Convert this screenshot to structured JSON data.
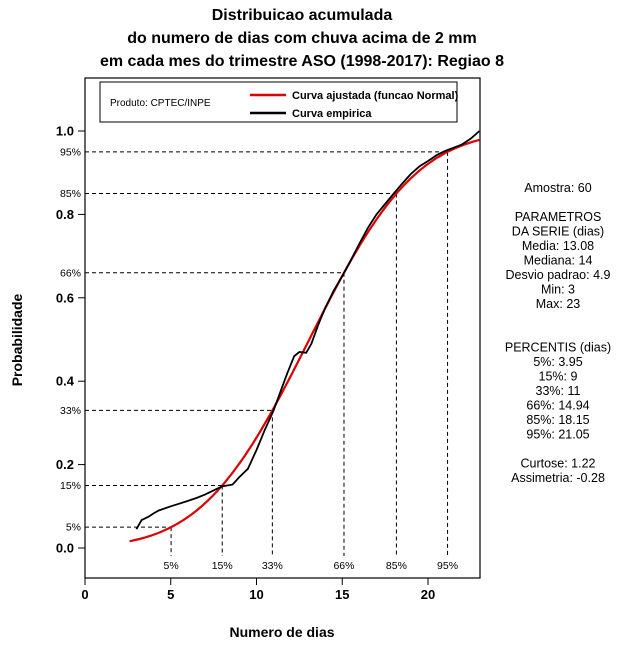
{
  "title": {
    "line1": "Distribuicao acumulada",
    "line2": "do numero de dias com chuva acima de 2 mm",
    "line3": "em cada mes do trimestre ASO (1998-2017): Regiao 8"
  },
  "legend": {
    "product": "Produto: CPTEC/INPE",
    "fitted_label": "Curva ajustada (funcao Normal)",
    "empirical_label": "Curva empirica"
  },
  "axes": {
    "xlabel": "Numero de dias",
    "ylabel": "Probabilidade"
  },
  "stats_panel": {
    "lines": [
      "Amostra: 60",
      "",
      "PARAMETROS",
      "DA SERIE (dias)",
      "Media: 13.08",
      "Mediana: 14",
      "Desvio padrao: 4.9",
      "Min: 3",
      "Max: 23",
      "",
      "",
      "PERCENTIS (dias)",
      "5%: 3.95",
      "15%: 9",
      "33%: 11",
      "66%: 14.94",
      "85%: 18.15",
      "95%: 21.05",
      "",
      "Curtose: 1.22",
      "Assimetria: -0.28"
    ]
  },
  "chart_data": {
    "type": "line",
    "title": "Distribuicao acumulada do numero de dias com chuva acima de 2 mm em cada mes do trimestre ASO (1998-2017): Regiao 8",
    "xlabel": "Numero de dias",
    "ylabel": "Probabilidade",
    "xlim": [
      0,
      23.1
    ],
    "ylim": [
      0,
      1
    ],
    "x_ticks": [
      0,
      5,
      10,
      15,
      20
    ],
    "y_ticks": [
      0,
      0.2,
      0.4,
      0.6,
      0.8,
      1
    ],
    "grid": false,
    "legend_position": "top",
    "colors": {
      "fitted": "#dd0000",
      "empirical": "#000000"
    },
    "series": [
      {
        "name": "Curva ajustada (funcao Normal)",
        "type": "normal_cdf",
        "mean": 13.08,
        "sd": 4.9,
        "x_start": 2.6,
        "x_end": 23.05
      },
      {
        "name": "Curva empirica",
        "type": "empirical_cdf",
        "x": [
          3,
          3.3,
          3.7,
          4,
          4.3,
          5,
          5.4,
          6,
          6.5,
          7,
          7.6,
          8,
          8.6,
          9,
          9.5,
          10,
          10.5,
          11,
          11.4,
          11.8,
          12.2,
          12.5,
          12.9,
          13.2,
          13.6,
          14,
          14.5,
          15,
          15.5,
          16,
          16.5,
          17,
          17.5,
          18,
          18.5,
          19,
          19.5,
          20,
          20.5,
          21,
          21.5,
          22,
          22.5,
          23
        ],
        "y": [
          0.045,
          0.067,
          0.075,
          0.083,
          0.09,
          0.1,
          0.105,
          0.113,
          0.12,
          0.128,
          0.14,
          0.148,
          0.152,
          0.17,
          0.19,
          0.235,
          0.285,
          0.33,
          0.375,
          0.42,
          0.46,
          0.47,
          0.468,
          0.49,
          0.535,
          0.575,
          0.617,
          0.652,
          0.69,
          0.73,
          0.768,
          0.8,
          0.825,
          0.85,
          0.874,
          0.897,
          0.915,
          0.928,
          0.942,
          0.952,
          0.96,
          0.968,
          0.982,
          1.0
        ]
      }
    ],
    "percentile_guides": [
      {
        "label": "5%",
        "p": 0.05,
        "dias": 3.95
      },
      {
        "label": "15%",
        "p": 0.15,
        "dias": 9
      },
      {
        "label": "33%",
        "p": 0.33,
        "dias": 11
      },
      {
        "label": "66%",
        "p": 0.66,
        "dias": 14.94
      },
      {
        "label": "85%",
        "p": 0.85,
        "dias": 18.15
      },
      {
        "label": "95%",
        "p": 0.95,
        "dias": 21.05
      }
    ],
    "stats": {
      "amostra": 60,
      "media": 13.08,
      "mediana": 14,
      "desvio_padrao": 4.9,
      "min": 3,
      "max": 23,
      "curtose": 1.22,
      "assimetria": -0.28
    }
  }
}
